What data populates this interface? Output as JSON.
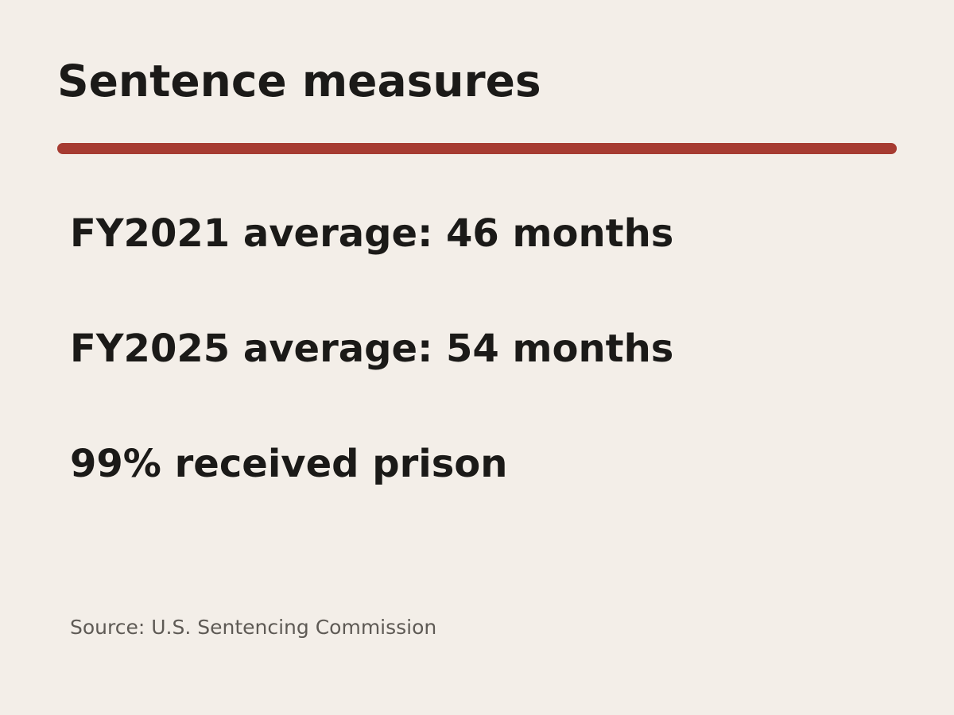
{
  "slide": {
    "title": "Sentence measures",
    "measures": [
      "FY2021 average: 46 months",
      "FY2025 average: 54 months",
      "99% received prison"
    ],
    "source": "Source: U.S. Sentencing Commission"
  },
  "colors": {
    "background": "#f3eee8",
    "accent": "#a63b31",
    "text": "#1b1a18",
    "muted": "#5e5a55"
  }
}
